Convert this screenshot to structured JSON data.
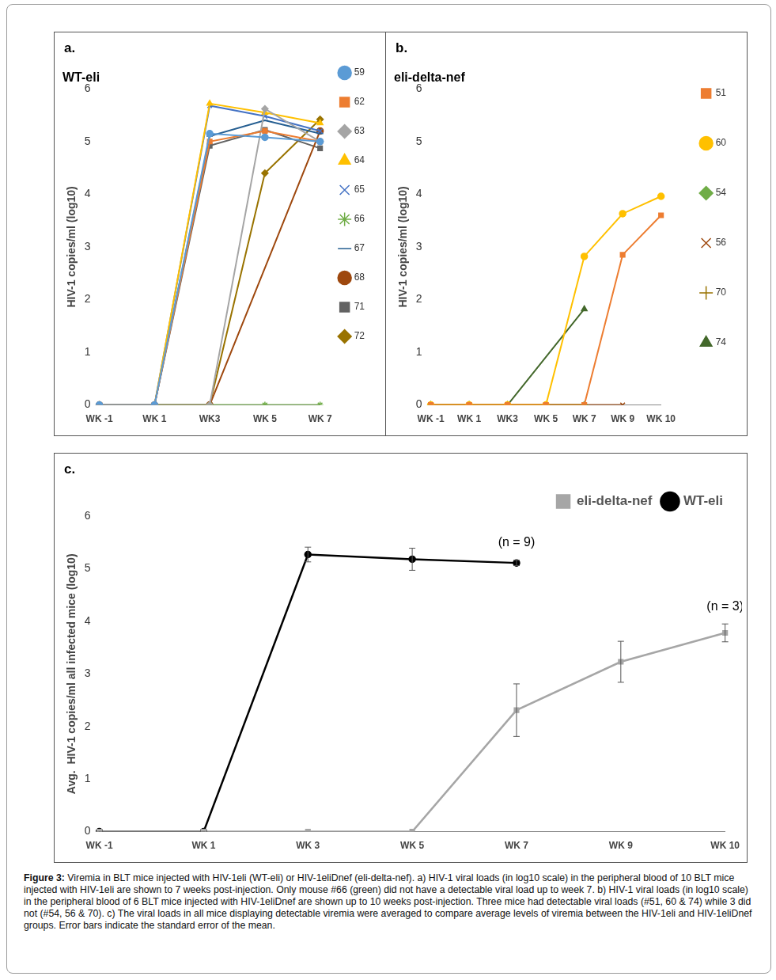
{
  "chart_data": [
    {
      "panel": "a.",
      "type": "line",
      "title": "WT-eli",
      "y_label": "HIV-1 copies/ml (log10)",
      "categories": [
        "WK -1",
        "WK 1",
        "WK3",
        "WK 5",
        "WK 7"
      ],
      "ylim": [
        0,
        6
      ],
      "yticks": [
        0,
        1,
        2,
        3,
        4,
        5,
        6
      ],
      "grid": false,
      "legend": "right",
      "series": [
        {
          "name": "59",
          "color": "#5B9BD5",
          "marker": "circle",
          "values": [
            0,
            0,
            5.15,
            5.08,
            5.0
          ]
        },
        {
          "name": "62",
          "color": "#ED7D31",
          "marker": "square",
          "values": [
            0,
            0,
            5.0,
            5.2,
            5.0
          ]
        },
        {
          "name": "63",
          "color": "#A5A5A5",
          "marker": "diamond",
          "values": [
            0,
            0,
            0,
            5.62,
            5.0
          ]
        },
        {
          "name": "64",
          "color": "#FFC000",
          "marker": "triangle",
          "values": [
            0,
            0,
            5.72,
            5.55,
            5.35
          ]
        },
        {
          "name": "65",
          "color": "#4472C4",
          "marker": "x",
          "values": [
            0,
            0,
            5.68,
            5.48,
            5.2
          ]
        },
        {
          "name": "66",
          "color": "#70AD47",
          "marker": "asterisk",
          "values": [
            0,
            0,
            0,
            0,
            0
          ]
        },
        {
          "name": "67",
          "color": "#255E91",
          "marker": "dash",
          "values": [
            0,
            0,
            5.1,
            5.4,
            5.15
          ]
        },
        {
          "name": "68",
          "color": "#9E480E",
          "marker": "circle",
          "values": [
            0,
            0,
            0,
            null,
            5.2
          ]
        },
        {
          "name": "71",
          "color": "#636363",
          "marker": "square",
          "values": [
            0,
            0,
            4.92,
            5.22,
            4.87
          ]
        },
        {
          "name": "72",
          "color": "#997300",
          "marker": "diamond",
          "values": [
            0,
            0,
            0,
            4.4,
            5.42
          ]
        }
      ]
    },
    {
      "panel": "b.",
      "type": "line",
      "title": "eli-delta-nef",
      "y_label": "HIV-1 copies/ml (log10)",
      "categories": [
        "WK -1",
        "WK 1",
        "WK3",
        "WK 5",
        "WK 7",
        "WK 9",
        "WK 10"
      ],
      "ylim": [
        0,
        6
      ],
      "yticks": [
        0,
        1,
        2,
        3,
        4,
        5,
        6
      ],
      "grid": false,
      "legend": "right",
      "series": [
        {
          "name": "51",
          "color": "#ED7D31",
          "marker": "square",
          "values": [
            0,
            0,
            0,
            0,
            0,
            2.85,
            3.6
          ]
        },
        {
          "name": "60",
          "color": "#FFC000",
          "marker": "circle",
          "values": [
            0,
            0,
            0,
            0,
            2.82,
            3.63,
            3.96
          ]
        },
        {
          "name": "54",
          "color": "#70AD47",
          "marker": "diamond",
          "values": [
            0,
            0,
            0,
            0,
            0,
            null,
            null
          ]
        },
        {
          "name": "56",
          "color": "#9E480E",
          "marker": "x",
          "values": [
            0,
            0,
            0,
            0,
            0,
            0,
            null
          ]
        },
        {
          "name": "70",
          "color": "#997300",
          "marker": "plus",
          "values": [
            0,
            0,
            0,
            0,
            0,
            null,
            null
          ]
        },
        {
          "name": "74",
          "color": "#43682B",
          "marker": "triangle",
          "values": [
            0,
            0,
            0,
            null,
            1.82,
            null,
            null
          ]
        }
      ]
    },
    {
      "panel": "c.",
      "type": "line",
      "y_label": "Avg.  HIV-1 copies/ml all infected mice (log10)",
      "categories": [
        "WK -1",
        "WK 1",
        "WK 3",
        "WK 5",
        "WK 7",
        "WK 9",
        "WK 10"
      ],
      "ylim": [
        0,
        6
      ],
      "yticks": [
        0,
        1,
        2,
        3,
        4,
        5,
        6
      ],
      "grid": false,
      "legend": "upper right",
      "series": [
        {
          "name": "eli-delta-nef",
          "color": "#A6A6A6",
          "marker": "square",
          "annotation": "(n = 3)",
          "values": [
            0,
            0,
            0,
            0,
            2.31,
            3.23,
            3.78
          ],
          "errors": [
            null,
            null,
            null,
            null,
            0.5,
            0.39,
            0.17
          ]
        },
        {
          "name": "WT-eli",
          "color": "#000000",
          "marker": "circle",
          "annotation": "(n = 9)",
          "values": [
            0,
            0,
            5.27,
            5.18,
            5.11,
            null,
            null
          ],
          "errors": [
            null,
            null,
            0.14,
            0.21,
            0.05,
            null,
            null
          ]
        }
      ]
    }
  ],
  "caption": {
    "label": "Figure 3:",
    "text": "Viremia in BLT mice injected with HIV-1eli (WT-eli) or HIV-1eliDnef (eli-delta-nef). a) HIV-1 viral loads (in log10 scale) in the peripheral blood of 10 BLT mice injected with HIV-1eli are shown to 7 weeks post-injection. Only mouse #66 (green) did not have a detectable viral load up to week 7. b) HIV-1 viral loads (in log10 scale) in the peripheral blood of 6 BLT mice injected with HIV-1eliDnef are shown up to 10 weeks post-injection. Three mice had detectable viral loads (#51, 60 & 74) while 3 did not (#54, 56 & 70). c) The viral loads in all mice displaying detectable viremia were averaged to compare average levels of viremia between the HIV-1eli and HIV-1eliDnef groups. Error bars indicate the standard error of the mean."
  }
}
